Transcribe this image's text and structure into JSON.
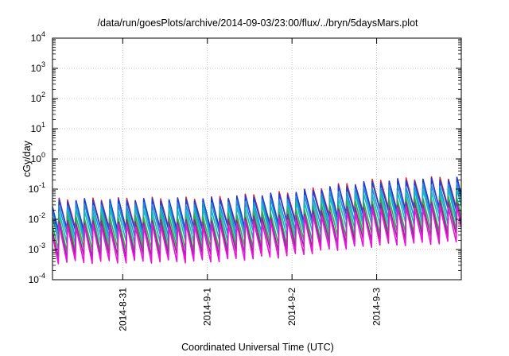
{
  "chart_data": {
    "type": "line",
    "title": "/data/run/goesPlots/archive/2014-09-03/23:00/flux/../bryn/5daysMars.plot",
    "xlabel": "Coordinated Universal Time (UTC)",
    "ylabel": "cGy/day",
    "yscale": "log",
    "ylim": [
      0.0001,
      10000
    ],
    "y_ticks": [
      {
        "value": 0.0001,
        "base": "10",
        "exp": "-4"
      },
      {
        "value": 0.001,
        "base": "10",
        "exp": "-3"
      },
      {
        "value": 0.01,
        "base": "10",
        "exp": "-2"
      },
      {
        "value": 0.1,
        "base": "10",
        "exp": "-1"
      },
      {
        "value": 1,
        "base": "10",
        "exp": "0"
      },
      {
        "value": 10,
        "base": "10",
        "exp": "1"
      },
      {
        "value": 100,
        "base": "10",
        "exp": "2"
      },
      {
        "value": 1000,
        "base": "10",
        "exp": "3"
      },
      {
        "value": 10000,
        "base": "10",
        "exp": "4"
      }
    ],
    "xlim_days": [
      -0.83,
      4.0
    ],
    "x_ticks": [
      {
        "label": "2014-8-31",
        "day": 0
      },
      {
        "label": "2014-9-1",
        "day": 1
      },
      {
        "label": "2014-9-2",
        "day": 2
      },
      {
        "label": "2014-9-3",
        "day": 3
      }
    ],
    "grid": true,
    "sawtooth_period_days": 0.1,
    "series": [
      {
        "color": "#e8262a",
        "trend": [
          [
            -0.83,
            0.045
          ],
          [
            1.0,
            0.05
          ],
          [
            2.0,
            0.08
          ],
          [
            2.4,
            0.12
          ],
          [
            3.0,
            0.2
          ],
          [
            4.0,
            0.25
          ]
        ],
        "drop_ratio": 10
      },
      {
        "color": "#1a3fd8",
        "trend": [
          [
            -0.83,
            0.042
          ],
          [
            1.0,
            0.047
          ],
          [
            2.0,
            0.075
          ],
          [
            2.4,
            0.11
          ],
          [
            3.0,
            0.18
          ],
          [
            4.0,
            0.23
          ]
        ],
        "drop_ratio": 10
      },
      {
        "color": "#1e8fd6",
        "trend": [
          [
            -0.83,
            0.03
          ],
          [
            1.0,
            0.033
          ],
          [
            2.0,
            0.05
          ],
          [
            2.4,
            0.075
          ],
          [
            3.0,
            0.12
          ],
          [
            4.0,
            0.15
          ]
        ],
        "drop_ratio": 11
      },
      {
        "color": "#17b6c0",
        "trend": [
          [
            -0.83,
            0.02
          ],
          [
            1.0,
            0.022
          ],
          [
            2.0,
            0.034
          ],
          [
            2.4,
            0.05
          ],
          [
            3.0,
            0.08
          ],
          [
            4.0,
            0.1
          ]
        ],
        "drop_ratio": 12
      },
      {
        "color": "#2eaa50",
        "trend": [
          [
            -0.83,
            0.012
          ],
          [
            1.0,
            0.013
          ],
          [
            2.0,
            0.02
          ],
          [
            2.4,
            0.03
          ],
          [
            3.0,
            0.045
          ],
          [
            4.0,
            0.055
          ]
        ],
        "drop_ratio": 13
      },
      {
        "color": "#8a2a8e",
        "trend": [
          [
            -0.83,
            0.008
          ],
          [
            1.0,
            0.009
          ],
          [
            2.0,
            0.014
          ],
          [
            2.4,
            0.02
          ],
          [
            3.0,
            0.03
          ],
          [
            4.0,
            0.04
          ]
        ],
        "drop_ratio": 14
      },
      {
        "color": "#e815d8",
        "trend": [
          [
            -0.83,
            0.006
          ],
          [
            1.0,
            0.0065
          ],
          [
            2.0,
            0.01
          ],
          [
            2.4,
            0.015
          ],
          [
            3.0,
            0.022
          ],
          [
            4.0,
            0.028
          ]
        ],
        "drop_ratio": 16
      }
    ]
  }
}
